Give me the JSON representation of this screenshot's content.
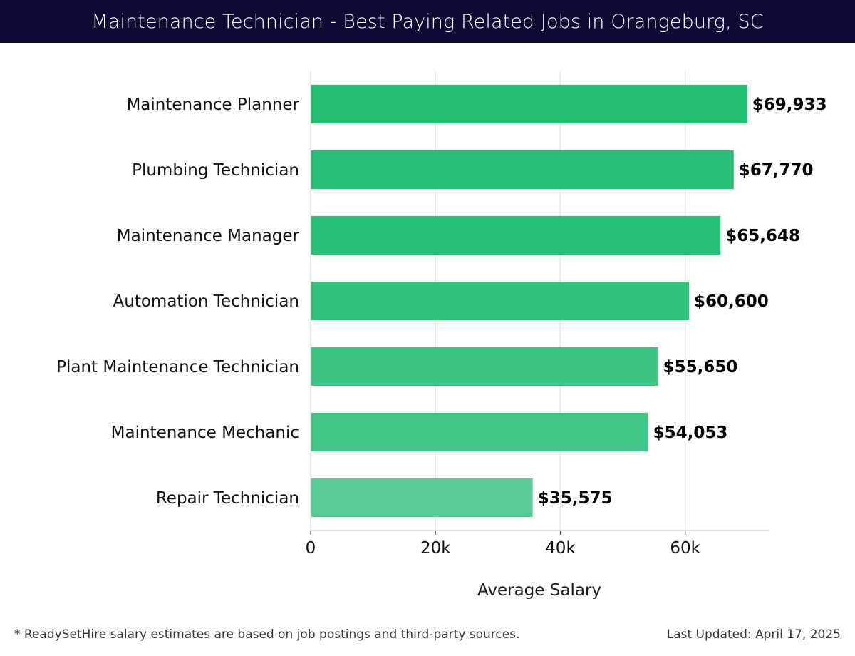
{
  "header": {
    "title": "Maintenance Technician - Best Paying Related Jobs in Orangeburg, SC"
  },
  "chart_data": {
    "type": "bar",
    "orientation": "horizontal",
    "categories": [
      "Maintenance Planner",
      "Plumbing Technician",
      "Maintenance Manager",
      "Automation Technician",
      "Plant Maintenance Technician",
      "Maintenance Mechanic",
      "Repair Technician"
    ],
    "values": [
      69933,
      67770,
      65648,
      60600,
      55650,
      54053,
      35575
    ],
    "value_labels": [
      "$69,933",
      "$67,770",
      "$65,648",
      "$60,600",
      "$55,650",
      "$54,053",
      "$35,575"
    ],
    "xlabel": "Average Salary",
    "ylabel": "",
    "xlim": [
      0,
      73500
    ],
    "xticks": [
      0,
      20000,
      40000,
      60000
    ],
    "xtick_labels": [
      "0",
      "20k",
      "40k",
      "60k"
    ],
    "grid": true,
    "bar_colors": [
      "#22bf73",
      "#25c075",
      "#28c177",
      "#30c37c",
      "#3cc683",
      "#40c785",
      "#5acd96"
    ]
  },
  "footer": {
    "note": "* ReadySetHire salary estimates are based on job postings and third-party sources.",
    "updated": "Last Updated: April 17, 2025"
  }
}
